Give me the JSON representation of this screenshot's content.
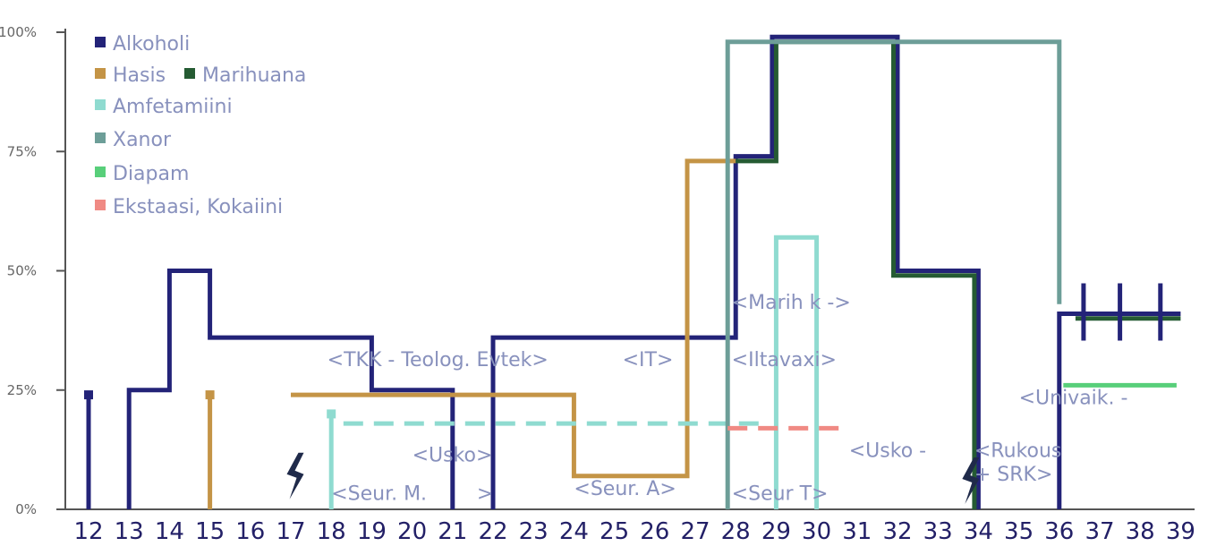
{
  "chart_data": {
    "type": "line",
    "title": "",
    "xlabel": "",
    "ylabel": "",
    "x_ticks": [
      "12",
      "13",
      "14",
      "15",
      "16",
      "17",
      "18",
      "19",
      "20",
      "21",
      "22",
      "23",
      "24",
      "25",
      "26",
      "27",
      "28",
      "29",
      "30",
      "31",
      "32",
      "33",
      "34",
      "35",
      "36",
      "37",
      "38",
      "39"
    ],
    "y_ticks": [
      "0%",
      "25%",
      "50%",
      "75%",
      "100%"
    ],
    "y_tick_values": [
      0,
      25,
      50,
      75,
      100
    ],
    "ylim": [
      0,
      100
    ],
    "grid": false,
    "legend_position": "top-left",
    "legend": [
      {
        "label": "Alkoholi",
        "color": "#232378"
      },
      {
        "label": "Hasis",
        "color": "#c49446"
      },
      {
        "label": "Marihuana",
        "color": "#255b33"
      },
      {
        "label": "Amfetamiini",
        "color": "#8fdbd0"
      },
      {
        "label": "Xanor",
        "color": "#6d9e98"
      },
      {
        "label": "Diapam",
        "color": "#58cf7a"
      },
      {
        "label": "Ekstaasi, Kokaiini",
        "color": "#f08a84"
      }
    ],
    "series": [
      {
        "name": "Alkoholi",
        "color": "#232378",
        "segments": [
          {
            "marker": [
              12,
              24
            ]
          },
          {
            "points": [
              [
                12,
                0
              ],
              [
                12,
                24
              ]
            ]
          },
          {
            "points": [
              [
                13,
                0
              ],
              [
                13,
                25
              ],
              [
                14,
                25
              ],
              [
                14,
                50
              ],
              [
                15,
                50
              ],
              [
                15,
                36
              ],
              [
                19,
                36
              ],
              [
                19,
                25
              ],
              [
                21,
                25
              ],
              [
                21,
                0
              ]
            ]
          },
          {
            "points": [
              [
                22,
                0
              ],
              [
                22,
                36
              ],
              [
                28,
                36
              ],
              [
                28,
                74
              ],
              [
                28.9,
                74
              ],
              [
                28.9,
                99
              ],
              [
                32,
                99
              ],
              [
                32,
                50
              ],
              [
                34,
                50
              ],
              [
                34,
                0
              ]
            ]
          },
          {
            "points": [
              [
                36,
                0
              ],
              [
                36,
                41
              ],
              [
                39,
                41
              ]
            ]
          }
        ]
      },
      {
        "name": "Hasis",
        "color": "#c49446",
        "segments": [
          {
            "marker": [
              15,
              24
            ]
          },
          {
            "points": [
              [
                15,
                0
              ],
              [
                15,
                24
              ]
            ]
          },
          {
            "points": [
              [
                17,
                24
              ],
              [
                24,
                24
              ],
              [
                24,
                7
              ],
              [
                26.8,
                7
              ],
              [
                26.8,
                73
              ],
              [
                28,
                73
              ]
            ]
          }
        ]
      },
      {
        "name": "Marihuana",
        "color": "#255b33",
        "segments": [
          {
            "points": [
              [
                28,
                73
              ],
              [
                29,
                73
              ],
              [
                29,
                98
              ],
              [
                31.9,
                98
              ],
              [
                31.9,
                49
              ],
              [
                33.9,
                49
              ],
              [
                33.9,
                0
              ]
            ]
          },
          {
            "points": [
              [
                36.4,
                40
              ],
              [
                39,
                40
              ]
            ]
          }
        ]
      },
      {
        "name": "Amfetamiini",
        "color": "#8fdbd0",
        "segments": [
          {
            "marker": [
              18,
              20
            ]
          },
          {
            "points": [
              [
                18,
                0
              ],
              [
                18,
                20
              ]
            ]
          },
          {
            "dashed": true,
            "points": [
              [
                18.3,
                18
              ],
              [
                28.7,
                18
              ]
            ]
          },
          {
            "points": [
              [
                29,
                0
              ],
              [
                29,
                57
              ],
              [
                30,
                57
              ],
              [
                30,
                0
              ]
            ]
          }
        ]
      },
      {
        "name": "Xanor",
        "color": "#6d9e98",
        "segments": [
          {
            "points": [
              [
                27.8,
                0
              ],
              [
                27.8,
                98
              ],
              [
                36,
                98
              ],
              [
                36,
                43
              ]
            ]
          }
        ]
      },
      {
        "name": "Diapam",
        "color": "#58cf7a",
        "segments": [
          {
            "points": [
              [
                36.1,
                26
              ],
              [
                38.9,
                26
              ]
            ]
          }
        ]
      },
      {
        "name": "Ekstaasi, Kokaiini",
        "color": "#f08a84",
        "segments": [
          {
            "dashed": true,
            "points": [
              [
                27.8,
                17
              ],
              [
                30.8,
                17
              ]
            ]
          }
        ]
      }
    ],
    "annotations": [
      {
        "text": "<TKK - Teolog. Evtek>",
        "x": 17.9,
        "y": 30
      },
      {
        "text": "<IT>",
        "x": 25.2,
        "y": 30
      },
      {
        "text": "<Iltavaxi>",
        "x": 27.9,
        "y": 30
      },
      {
        "text": "<Marih k ->",
        "x": 27.9,
        "y": 42
      },
      {
        "text": "<Univaik. -",
        "x": 35.0,
        "y": 22
      },
      {
        "text": "<Usko>",
        "x": 20.0,
        "y": 10
      },
      {
        "text": "<Usko -",
        "x": 30.8,
        "y": 11
      },
      {
        "text": "<Rukous",
        "x": 33.9,
        "y": 11
      },
      {
        "text": "+ SRK>",
        "x": 33.9,
        "y": 6
      },
      {
        "text": "<Seur. M.",
        "x": 18.0,
        "y": 2
      },
      {
        "text": ">",
        "x": 21.6,
        "y": 2
      },
      {
        "text": "<Seur. A>",
        "x": 24.0,
        "y": 3
      },
      {
        "text": "<Seur T>",
        "x": 27.9,
        "y": 2
      }
    ],
    "lightning_marks": [
      {
        "x": 17.1,
        "y": 7
      },
      {
        "x": 33.8,
        "y": 6
      }
    ],
    "cross_ticks": [
      36.6,
      37.5,
      38.5
    ]
  }
}
